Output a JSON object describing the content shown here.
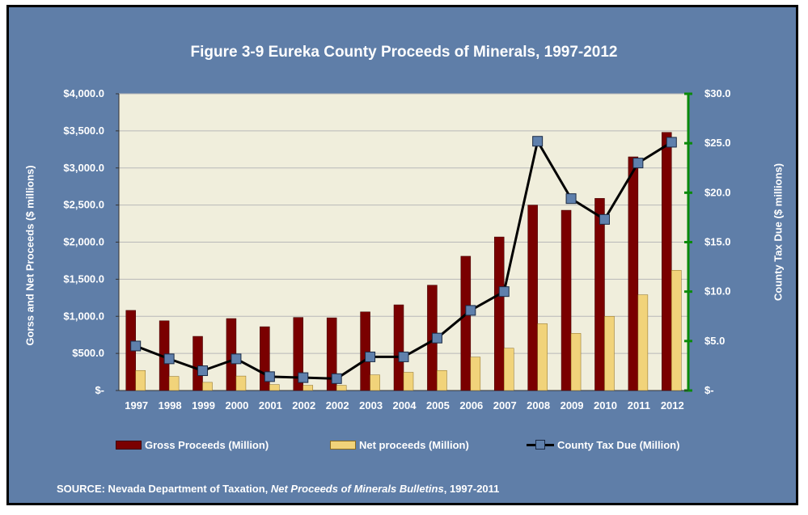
{
  "chart_data": {
    "type": "bar",
    "title": "Figure 3-9 Eureka County Proceeds of Minerals, 1997-2012",
    "categories": [
      "1997",
      "1998",
      "1999",
      "2000",
      "2001",
      "2002",
      "2002",
      "2003",
      "2004",
      "2005",
      "2006",
      "2007",
      "2008",
      "2009",
      "2010",
      "2011",
      "2012"
    ],
    "ylabel": "Gorss and Net Proceeds ($ millions)",
    "y2label": "County Tax Due ($ millions)",
    "ylim": [
      0,
      4000
    ],
    "y2lim": [
      0,
      30
    ],
    "yticks": [
      "$-",
      "$500.0",
      "$1,000.0",
      "$1,500.0",
      "$2,000.0",
      "$2,500.0",
      "$3,000.0",
      "$3,500.0",
      "$4,000.0"
    ],
    "y2ticks": [
      "$-",
      "$5.0",
      "$10.0",
      "$15.0",
      "$20.0",
      "$25.0",
      "$30.0"
    ],
    "series": [
      {
        "name": "Gross Proceeds (Million)",
        "kind": "bar",
        "axis": "left",
        "color": "#7a0000",
        "values": [
          1080,
          940,
          730,
          970,
          860,
          985,
          980,
          1060,
          1155,
          1420,
          1810,
          2070,
          2500,
          2430,
          2590,
          3150,
          3480
        ]
      },
      {
        "name": "Net proceeds (Million)",
        "kind": "bar",
        "axis": "left",
        "color": "#f1d37a",
        "values": [
          270,
          190,
          110,
          195,
          80,
          70,
          70,
          210,
          245,
          270,
          450,
          570,
          900,
          770,
          1000,
          1290,
          1620
        ]
      },
      {
        "name": "County Tax Due (Million)",
        "kind": "line",
        "axis": "right",
        "color": "#000000",
        "marker_color": "#5f80ac",
        "values": [
          4.5,
          3.2,
          2.0,
          3.2,
          1.4,
          1.3,
          1.2,
          3.4,
          3.4,
          5.3,
          8.1,
          10.0,
          25.2,
          19.4,
          17.3,
          23.0,
          25.1
        ]
      }
    ],
    "grid": true,
    "legend": "bottom",
    "plot_background": "#f0eedc",
    "frame_background": "#5f7ea8"
  },
  "source": {
    "prefix": "SOURCE: Nevada Department of Taxation, ",
    "italic": "Net Proceeds of Minerals Bulletins",
    "suffix": ", 1997-2011"
  }
}
